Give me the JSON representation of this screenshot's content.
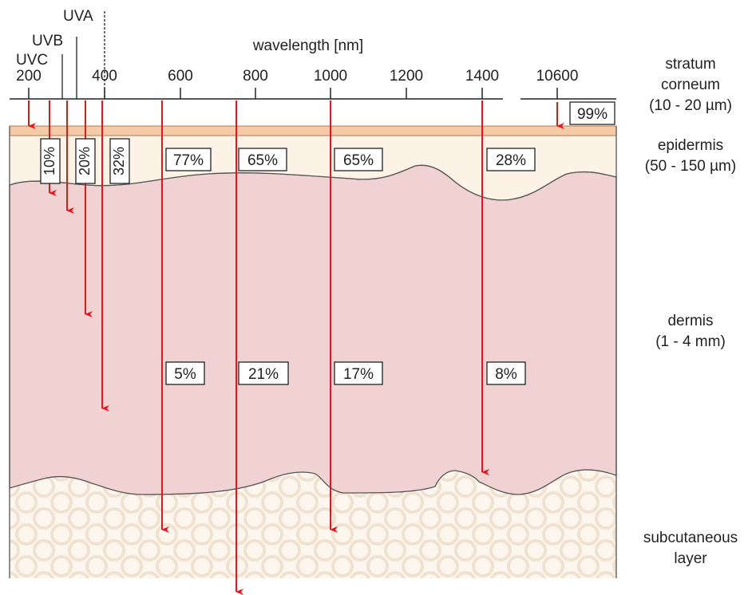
{
  "axis": {
    "title": "wavelength [nm]",
    "ticks": [
      "200",
      "400",
      "600",
      "800",
      "1000",
      "1200",
      "1400",
      "10600"
    ]
  },
  "uv_bands": [
    {
      "name": "UVC"
    },
    {
      "name": "UVB"
    },
    {
      "name": "UVA"
    }
  ],
  "layers": {
    "stratum_corneum": {
      "name": "stratum corneum",
      "line1": "stratum",
      "line2": "corneum",
      "thickness": "(10 - 20 µm)"
    },
    "epidermis": {
      "name": "epidermis",
      "thickness": "(50 - 150 µm)"
    },
    "dermis": {
      "name": "dermis",
      "thickness": "(1 - 4 mm)"
    },
    "subcutaneous": {
      "name": "subcutaneous layer",
      "line1": "subcutaneous",
      "line2": "layer"
    }
  },
  "penetration": [
    {
      "wavelength": "200",
      "epidermis_pct": "",
      "dermis_pct": ""
    },
    {
      "wavelength": "250",
      "epidermis_pct": "10%",
      "dermis_pct": ""
    },
    {
      "wavelength": "300",
      "epidermis_pct": "",
      "dermis_pct": ""
    },
    {
      "wavelength": "350",
      "epidermis_pct": "20%",
      "dermis_pct": ""
    },
    {
      "wavelength": "400",
      "epidermis_pct": "32%",
      "dermis_pct": ""
    },
    {
      "wavelength": "550",
      "epidermis_pct": "77%",
      "dermis_pct": "5%"
    },
    {
      "wavelength": "750",
      "epidermis_pct": "65%",
      "dermis_pct": "21%"
    },
    {
      "wavelength": "1000",
      "epidermis_pct": "65%",
      "dermis_pct": "17%"
    },
    {
      "wavelength": "1400",
      "epidermis_pct": "28%",
      "dermis_pct": "8%"
    },
    {
      "wavelength": "10600",
      "stratum_corneum_pct": "99%"
    }
  ],
  "colors": {
    "stratum_corneum": "#f5cba7",
    "epidermis": "#fdf2e6",
    "dermis": "#f0d2d2",
    "subcutaneous_bg": "#fdf6ee",
    "subcutaneous_cells": "#f2e4d4",
    "arrow": "#e8141b"
  }
}
